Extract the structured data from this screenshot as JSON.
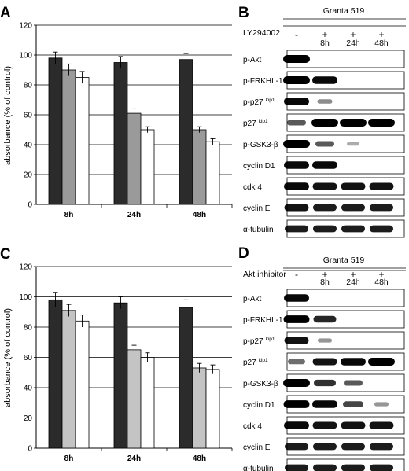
{
  "panels": [
    {
      "letter": "A",
      "ylabel": "absorbance (% of control)",
      "yticks": [
        "0",
        "20",
        "40",
        "60",
        "80",
        "100",
        "120"
      ],
      "groups": [
        "8h",
        "24h",
        "48h"
      ]
    },
    {
      "letter": "B",
      "title": "Granta 519",
      "treatment": "LY294002",
      "lanes": [
        "-",
        "+",
        "+",
        "+"
      ],
      "times": [
        "",
        "8h",
        "24h",
        "48h"
      ],
      "rows": [
        {
          "label": "p-Akt",
          "sup": ""
        },
        {
          "label": "p-FRKHL-1",
          "sup": ""
        },
        {
          "label": "p-p27",
          "sup": "kip1"
        },
        {
          "label": "p27",
          "sup": "kip1"
        },
        {
          "label": "p-GSK3-β",
          "sup": ""
        },
        {
          "label": "cyclin D1",
          "sup": ""
        },
        {
          "label": "cdk 4",
          "sup": ""
        },
        {
          "label": "cyclin E",
          "sup": ""
        },
        {
          "label": "α-tubulin",
          "sup": ""
        }
      ],
      "intensity": [
        [
          1,
          0,
          0,
          0
        ],
        [
          1,
          0.9,
          0,
          0
        ],
        [
          0.9,
          0.25,
          0,
          0
        ],
        [
          0.5,
          1,
          1,
          1
        ],
        [
          1,
          0.5,
          0.1,
          0
        ],
        [
          0.9,
          0.9,
          0,
          0
        ],
        [
          0.9,
          0.85,
          0.85,
          0.85
        ],
        [
          0.85,
          0.8,
          0.8,
          0.8
        ],
        [
          0.8,
          0.8,
          0.8,
          0.8
        ]
      ]
    },
    {
      "letter": "C",
      "ylabel": "absorbance (% of control)",
      "yticks": [
        "0",
        "20",
        "40",
        "60",
        "80",
        "100",
        "120"
      ],
      "groups": [
        "8h",
        "24h",
        "48h"
      ]
    },
    {
      "letter": "D",
      "title": "Granta 519",
      "treatment": "Akt inhibitor",
      "lanes": [
        "-",
        "+",
        "+",
        "+"
      ],
      "times": [
        "",
        "8h",
        "24h",
        "48h"
      ],
      "rows": [
        {
          "label": "p-Akt",
          "sup": ""
        },
        {
          "label": "p-FRKHL-1",
          "sup": ""
        },
        {
          "label": "p-p27",
          "sup": "kip1"
        },
        {
          "label": "p27",
          "sup": "kip1"
        },
        {
          "label": "p-GSK3-β",
          "sup": ""
        },
        {
          "label": "cyclin D1",
          "sup": ""
        },
        {
          "label": "cdk 4",
          "sup": ""
        },
        {
          "label": "cyclin E",
          "sup": ""
        },
        {
          "label": "α-tubulin",
          "sup": ""
        }
      ],
      "intensity": [
        [
          0.9,
          0,
          0,
          0
        ],
        [
          0.95,
          0.75,
          0,
          0
        ],
        [
          0.85,
          0.2,
          0,
          0
        ],
        [
          0.4,
          0.85,
          0.9,
          1
        ],
        [
          1,
          0.7,
          0.5,
          0
        ],
        [
          0.95,
          0.9,
          0.6,
          0.2
        ],
        [
          0.9,
          0.85,
          0.85,
          0.85
        ],
        [
          0.8,
          0.8,
          0.8,
          0.8
        ],
        [
          0.8,
          0.8,
          0.8,
          0.8
        ]
      ]
    }
  ],
  "chart_data": [
    {
      "type": "bar",
      "categories": [
        "8h",
        "24h",
        "48h"
      ],
      "ylabel": "absorbance (% of control)",
      "ylim": [
        0,
        120
      ],
      "grid": true,
      "series": [
        {
          "color": "#2b2b2b",
          "values": [
            98,
            95,
            97
          ],
          "errors": [
            4,
            4,
            4
          ]
        },
        {
          "color": "#9a9a9a",
          "values": [
            90,
            61,
            50
          ],
          "errors": [
            4,
            3,
            2
          ]
        },
        {
          "color": "#ffffff",
          "values": [
            85,
            50,
            42
          ],
          "errors": [
            4,
            2,
            2
          ]
        }
      ]
    },
    {
      "type": "bar",
      "categories": [
        "8h",
        "24h",
        "48h"
      ],
      "ylabel": "absorbance (% of control)",
      "ylim": [
        0,
        120
      ],
      "grid": true,
      "series": [
        {
          "color": "#2b2b2b",
          "values": [
            98,
            96,
            93
          ],
          "errors": [
            5,
            4,
            5
          ]
        },
        {
          "color": "#c4c4c4",
          "values": [
            91,
            65,
            53
          ],
          "errors": [
            4,
            3,
            3
          ]
        },
        {
          "color": "#ffffff",
          "values": [
            84,
            60,
            52
          ],
          "errors": [
            4,
            3,
            3
          ]
        }
      ]
    }
  ]
}
